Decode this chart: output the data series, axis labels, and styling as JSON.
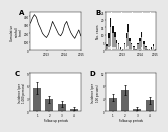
{
  "panel_A": {
    "label": "A",
    "ylabel": "Cumulative\nrainfall\n(mm)",
    "xlabels": [
      "2013",
      "2014",
      "2015"
    ],
    "rainfall": [
      320,
      380,
      420,
      390,
      310,
      260,
      200,
      170,
      150,
      190,
      260,
      340,
      290,
      240,
      190,
      170,
      210,
      300,
      340,
      270,
      210,
      170,
      140,
      190,
      240,
      170
    ],
    "ylim": [
      0,
      450
    ],
    "yticks": [
      0,
      100,
      200,
      300,
      400
    ]
  },
  "panel_B": {
    "label": "B",
    "ylabel": "No. cases",
    "xlabels": [
      "2013",
      "2014",
      "2015"
    ],
    "confirmed": [
      1,
      3,
      6,
      5,
      3,
      2,
      1,
      1,
      0,
      1,
      3,
      5,
      2,
      1,
      1,
      0,
      1,
      2,
      3,
      2,
      1,
      0,
      0,
      1,
      1,
      0
    ],
    "probable": [
      2,
      6,
      12,
      9,
      7,
      4,
      3,
      1,
      1,
      3,
      6,
      9,
      5,
      3,
      2,
      1,
      3,
      5,
      7,
      3,
      2,
      1,
      1,
      1,
      2,
      1
    ],
    "unconfirmed": [
      1,
      2,
      3,
      2,
      2,
      1,
      1,
      0,
      0,
      1,
      2,
      3,
      1,
      1,
      0,
      0,
      1,
      1,
      2,
      1,
      0,
      0,
      0,
      0,
      1,
      0
    ],
    "ylim": [
      0,
      25
    ],
    "yticks": [
      0,
      5,
      10,
      15,
      20,
      25
    ],
    "vlines_x": [
      2,
      7,
      13,
      18,
      22
    ]
  },
  "panel_C": {
    "label": "C",
    "ylabel": "Incidence (per\n1,000 persons)",
    "xlabel": "Follow-up periods",
    "values": [
      5.5,
      2.8,
      1.8,
      0.6
    ],
    "errors": [
      1.4,
      0.8,
      0.7,
      0.4
    ],
    "bar_color": "#666666",
    "ylim": [
      0,
      9
    ],
    "yticks": [
      0,
      3,
      6,
      9
    ]
  },
  "panel_D": {
    "label": "D",
    "ylabel": "Incidence (per\n100 persons)",
    "xlabel": "Follow-up periods",
    "values": [
      4.2,
      6.8,
      0.8,
      3.5
    ],
    "errors": [
      1.1,
      1.6,
      0.4,
      1.1
    ],
    "bar_color": "#666666",
    "ylim": [
      0,
      12
    ],
    "yticks": [
      0,
      4,
      8,
      12
    ]
  },
  "background_color": "#e8e8e8",
  "axes_color": "#ffffff",
  "bar_colors": {
    "confirmed": "#111111",
    "probable": "#999999",
    "unconfirmed": "#eeeeee"
  }
}
